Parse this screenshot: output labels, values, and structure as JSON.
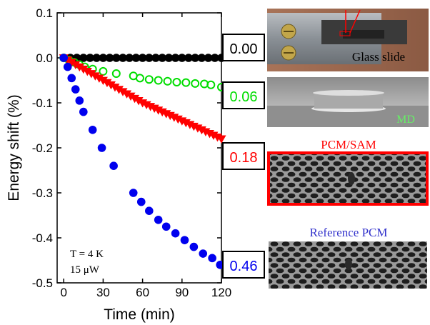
{
  "chart_data": {
    "type": "scatter",
    "xlabel": "Time (min)",
    "ylabel": "Energy shift (%)",
    "xlim": [
      -5,
      120
    ],
    "ylim": [
      -0.5,
      0.1
    ],
    "xticks": [
      "0",
      "30",
      "60",
      "90",
      "120"
    ],
    "yticks": [
      "0.1",
      "0.0",
      "-0.1",
      "-0.2",
      "-0.3",
      "-0.4",
      "-0.5"
    ],
    "xtick_values": [
      0,
      30,
      60,
      90,
      120
    ],
    "ytick_values": [
      0.1,
      0.0,
      -0.1,
      -0.2,
      -0.3,
      -0.4,
      -0.5
    ],
    "annotation": [
      "T = 4 K",
      "15 μW"
    ],
    "series": [
      {
        "marker": "filled-circle",
        "color": "#000000",
        "x": [
          0,
          5,
          10,
          15,
          20,
          25,
          30,
          35,
          40,
          45,
          50,
          55,
          60,
          65,
          70,
          75,
          80,
          85,
          90,
          95,
          100,
          105,
          110,
          115,
          120
        ],
        "y": [
          0,
          0,
          0,
          0,
          0,
          0,
          0,
          0,
          0,
          0,
          0,
          0,
          0,
          0,
          0,
          0,
          0,
          0,
          0,
          0,
          0,
          0,
          0,
          0,
          0
        ]
      },
      {
        "marker": "open-circle",
        "color": "#00dd00",
        "x": [
          0,
          4,
          8,
          12,
          16,
          22,
          30,
          40,
          53,
          58,
          65,
          72,
          79,
          86,
          93,
          100,
          107,
          112,
          120
        ],
        "y": [
          0.0,
          -0.005,
          -0.01,
          -0.015,
          -0.02,
          -0.025,
          -0.03,
          -0.035,
          -0.04,
          -0.045,
          -0.048,
          -0.05,
          -0.052,
          -0.054,
          -0.055,
          -0.057,
          -0.058,
          -0.06,
          -0.065
        ]
      },
      {
        "marker": "filled-triangle-down",
        "color": "#ff0000",
        "x": [
          0,
          3,
          6,
          9,
          12,
          15,
          18,
          21,
          24,
          27,
          30,
          33,
          36,
          39,
          42,
          45,
          48,
          51,
          54,
          57,
          60,
          63,
          66,
          69,
          72,
          75,
          78,
          81,
          84,
          87,
          90,
          93,
          96,
          99,
          102,
          105,
          108,
          111,
          114,
          117,
          120
        ],
        "y": [
          0.0,
          -0.005,
          -0.01,
          -0.015,
          -0.02,
          -0.025,
          -0.03,
          -0.035,
          -0.04,
          -0.045,
          -0.05,
          -0.055,
          -0.06,
          -0.065,
          -0.07,
          -0.075,
          -0.08,
          -0.085,
          -0.09,
          -0.095,
          -0.1,
          -0.104,
          -0.108,
          -0.112,
          -0.116,
          -0.12,
          -0.124,
          -0.128,
          -0.132,
          -0.136,
          -0.14,
          -0.144,
          -0.148,
          -0.152,
          -0.156,
          -0.16,
          -0.164,
          -0.168,
          -0.172,
          -0.176,
          -0.18
        ]
      },
      {
        "marker": "filled-circle",
        "color": "#0000ee",
        "x": [
          0,
          3,
          6,
          9,
          12,
          15,
          22,
          29,
          38,
          53,
          59,
          65,
          72,
          78,
          85,
          92,
          99,
          106,
          113,
          119
        ],
        "y": [
          0.0,
          -0.02,
          -0.045,
          -0.07,
          -0.095,
          -0.12,
          -0.16,
          -0.2,
          -0.24,
          -0.3,
          -0.32,
          -0.34,
          -0.36,
          -0.375,
          -0.39,
          -0.405,
          -0.42,
          -0.435,
          -0.445,
          -0.46
        ]
      }
    ],
    "value_boxes": [
      {
        "text": "0.00",
        "color": "#000000"
      },
      {
        "text": "0.06",
        "color": "#00dd00"
      },
      {
        "text": "0.18",
        "color": "#ff0000"
      },
      {
        "text": "0.46",
        "color": "#0000ee"
      }
    ]
  },
  "panels": {
    "glass_slide": "Glass slide",
    "md": "MD",
    "pcm_sam": "PCM/SAM",
    "reference_pcm": "Reference PCM"
  },
  "colors": {
    "md_label": "#66ee66",
    "pcm_sam_label": "#ff0000",
    "reference_label": "#3333cc",
    "pcm_sam_border": "#ff0000"
  }
}
